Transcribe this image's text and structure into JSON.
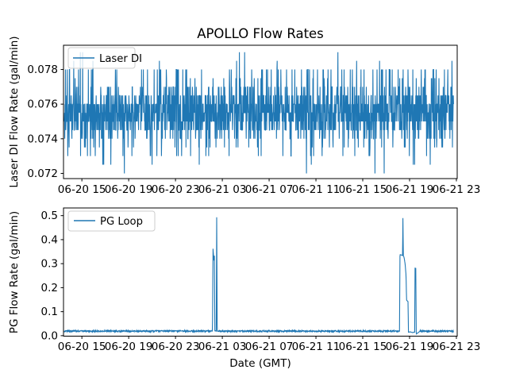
{
  "figure": {
    "title": "APOLLO Flow Rates",
    "xlabel": "Date (GMT)",
    "background": "#ffffff",
    "line_color": "#1f77b4",
    "text_color": "#000000",
    "legend_edge_color": "#cccccc"
  },
  "x_axis": {
    "tick_hours": [
      15,
      19,
      23,
      27,
      31,
      35,
      39,
      43,
      47
    ],
    "tick_labels": [
      "06-20 15",
      "06-20 19",
      "06-20 23",
      "06-21 03",
      "06-21 07",
      "06-21 11",
      "06-21 15",
      "06-21 19",
      "06-21 23"
    ],
    "xlim_hours": [
      13.43,
      47.07
    ],
    "hours_origin": "2006-06-20 00:00 GMT"
  },
  "chart_data": [
    {
      "type": "line",
      "title": "APOLLO Flow Rates",
      "ylabel": "Laser DI Flow Rate (gal/min)",
      "legend_label": "Laser DI",
      "legend_position": "upper-left",
      "grid": false,
      "line_color": "#1f77b4",
      "ylim": [
        0.0717,
        0.0794
      ],
      "ytick_values": [
        0.072,
        0.074,
        0.076,
        0.078
      ],
      "ytick_labels": [
        "0.072",
        "0.074",
        "0.076",
        "0.078"
      ],
      "series": {
        "name": "Laser DI",
        "generator": "quantized-noise",
        "seed": 20240621,
        "n_points": 1700,
        "x_start_hour": 13.5,
        "x_end_hour": 46.76,
        "mean": 0.0755,
        "quantum": 0.0005,
        "level_values": [
          0.072,
          0.0725,
          0.073,
          0.0735,
          0.074,
          0.0745,
          0.075,
          0.0755,
          0.076,
          0.0765,
          0.077,
          0.0775,
          0.078,
          0.0785,
          0.079
        ],
        "level_weights": [
          1.5,
          5,
          14,
          18,
          45,
          90,
          150,
          160,
          150,
          95,
          45,
          18,
          42,
          6,
          2
        ]
      },
      "observed": {
        "min": 0.0719,
        "max": 0.079,
        "dense_band": [
          0.0745,
          0.0765
        ],
        "typical": 0.0755
      }
    },
    {
      "type": "line",
      "ylabel": "PG Flow Rate (gal/min)",
      "xlabel": "Date (GMT)",
      "legend_label": "PG Loop",
      "legend_position": "upper-left",
      "grid": false,
      "line_color": "#1f77b4",
      "ylim": [
        -0.002,
        0.532
      ],
      "ytick_values": [
        0.0,
        0.1,
        0.2,
        0.3,
        0.4,
        0.5
      ],
      "ytick_labels": [
        "0.0",
        "0.1",
        "0.2",
        "0.3",
        "0.4",
        "0.5"
      ],
      "series": {
        "name": "PG Loop",
        "generator": "baseline-with-events",
        "seed": 777,
        "n_points": 1700,
        "x_start_hour": 13.5,
        "x_end_hour": 46.76,
        "baseline_mean": 0.019,
        "baseline_noise": 0.003,
        "events": [
          {
            "name": "surge-1",
            "points": [
              [
                26.16,
                0.019
              ],
              [
                26.2,
                0.365
              ],
              [
                26.24,
                0.342
              ],
              [
                26.28,
                0.31
              ],
              [
                26.32,
                0.35
              ],
              [
                26.36,
                0.019
              ]
            ]
          },
          {
            "name": "spike-1",
            "points": [
              [
                26.48,
                0.019
              ],
              [
                26.52,
                0.516
              ],
              [
                26.56,
                0.019
              ]
            ]
          },
          {
            "name": "surge-2",
            "points": [
              [
                42.14,
                0.019
              ],
              [
                42.18,
                0.338
              ],
              [
                42.3,
                0.336
              ],
              [
                42.4,
                0.334
              ],
              [
                42.43,
                0.506
              ],
              [
                42.47,
                0.332
              ],
              [
                42.52,
                0.328
              ],
              [
                42.62,
                0.3
              ],
              [
                42.7,
                0.25
              ],
              [
                42.74,
                0.148
              ],
              [
                42.87,
                0.142
              ],
              [
                42.9,
                0.014
              ],
              [
                43.05,
                0.016
              ],
              [
                43.25,
                0.013
              ],
              [
                43.44,
                0.015
              ],
              [
                43.47,
                0.284
              ],
              [
                43.5,
                0.27
              ],
              [
                43.53,
                0.282
              ],
              [
                43.57,
                0.006
              ],
              [
                43.65,
                0.01
              ],
              [
                43.72,
                0.012
              ],
              [
                43.9,
                0.019
              ]
            ]
          }
        ]
      },
      "observed": {
        "baseline": 0.02,
        "peaks": [
          {
            "near_tick": "06-21 03",
            "value": 0.52
          },
          {
            "near_tick": "06-21 19",
            "value": 0.51
          },
          {
            "after_tick": "06-21 19",
            "value": 0.28
          }
        ]
      }
    }
  ]
}
